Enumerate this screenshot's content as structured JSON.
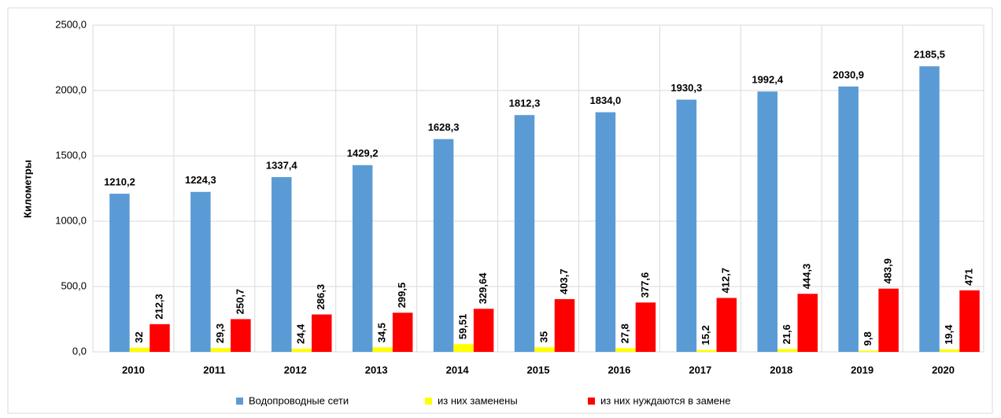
{
  "chart_data": {
    "type": "bar",
    "y_label": "Километры",
    "categories": [
      "2010",
      "2011",
      "2012",
      "2013",
      "2014",
      "2015",
      "2016",
      "2017",
      "2018",
      "2019",
      "2020"
    ],
    "series": [
      {
        "name": "Водопроводные сети",
        "color": "#5b9bd5",
        "values": [
          1210.2,
          1224.3,
          1337.4,
          1429.2,
          1628.3,
          1812.3,
          1834.0,
          1930.3,
          1992.4,
          2030.9,
          2185.5
        ],
        "value_labels": [
          "1210,2",
          "1224,3",
          "1337,4",
          "1429,2",
          "1628,3",
          "1812,3",
          "1834,0",
          "1930,3",
          "1992,4",
          "2030,9",
          "2185,5"
        ]
      },
      {
        "name": "из них заменены",
        "color": "#ffff00",
        "values": [
          32,
          29.3,
          24.4,
          34.5,
          59.51,
          35,
          27.8,
          15.2,
          21.6,
          9.8,
          19.4
        ],
        "value_labels": [
          "32",
          "29,3",
          "24,4",
          "34,5",
          "59,51",
          "35",
          "27,8",
          "15,2",
          "21,6",
          "9,8",
          "19,4"
        ]
      },
      {
        "name": "из них нуждаются в замене",
        "color": "#ff0000",
        "values": [
          212.3,
          250.7,
          286.3,
          299.5,
          329.64,
          403.7,
          377.6,
          412.7,
          444.3,
          483.9,
          471
        ],
        "value_labels": [
          "212,3",
          "250,7",
          "286,3",
          "299,5",
          "329,64",
          "403,7",
          "377,6",
          "412,7",
          "444,3",
          "483,9",
          "471"
        ]
      }
    ],
    "ylim": [
      0,
      2500
    ],
    "yticks": [
      {
        "value": 0,
        "label": "0,0"
      },
      {
        "value": 500,
        "label": "500,0"
      },
      {
        "value": 1000,
        "label": "1000,0"
      },
      {
        "value": 1500,
        "label": "1500,0"
      },
      {
        "value": 2000,
        "label": "2000,0"
      },
      {
        "value": 2500,
        "label": "2500,0"
      }
    ],
    "grid": true,
    "legend": "bottom"
  }
}
